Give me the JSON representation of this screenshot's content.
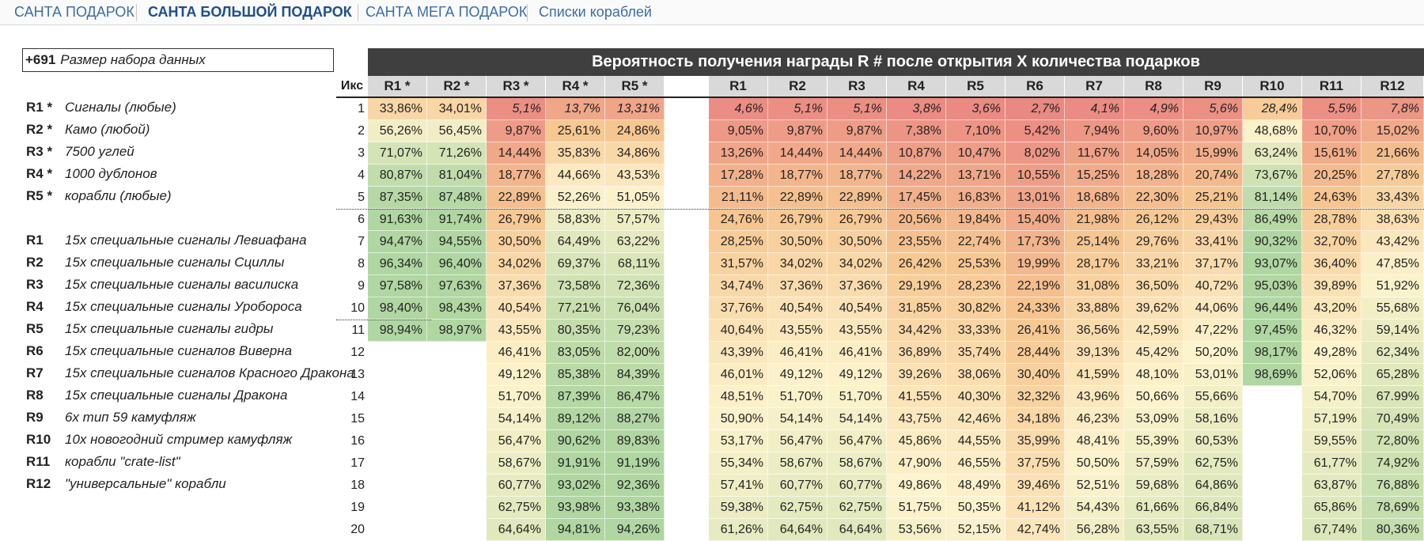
{
  "tabs": [
    {
      "label": "САНТА ПОДАРОК",
      "active": false
    },
    {
      "label": "САНТА БОЛЬШОЙ ПОДАРОК",
      "active": true
    },
    {
      "label": "САНТА МЕГА ПОДАРОК",
      "active": false
    },
    {
      "label": "Списки кораблей",
      "active": false
    }
  ],
  "dataset": {
    "count": "+691",
    "label": "Размер набора данных"
  },
  "legend": [
    {
      "code": "R1 *",
      "desc": "Сигналы (любые)"
    },
    {
      "code": "R2 *",
      "desc": "Камо (любой)"
    },
    {
      "code": "R3 *",
      "desc": "7500 углей"
    },
    {
      "code": "R4 *",
      "desc": "1000 дублонов"
    },
    {
      "code": "R5 *",
      "desc": "корабли (любые)"
    },
    {
      "code": "",
      "desc": ""
    },
    {
      "code": "R1",
      "desc": "15x специальные сигналы Левиафана"
    },
    {
      "code": "R2",
      "desc": "15x специальные сигналы Сциллы"
    },
    {
      "code": "R3",
      "desc": "15x специальные сигналы василиска"
    },
    {
      "code": "R4",
      "desc": "15x специальные сигналы Уробороса"
    },
    {
      "code": "R5",
      "desc": "15x специальные сигналы гидры"
    },
    {
      "code": "R6",
      "desc": "15x специальные сигналов Виверна"
    },
    {
      "code": "R7",
      "desc": "15x специальные сигналов Красного Дракона"
    },
    {
      "code": "R8",
      "desc": "15x специальные сигналы Дракона"
    },
    {
      "code": "R9",
      "desc": "6x тип 59 камуфляж"
    },
    {
      "code": "R10",
      "desc": "10x новогодний стример камуфляж"
    },
    {
      "code": "R11",
      "desc": "корабли \"crate-list\""
    },
    {
      "code": "R12",
      "desc": "\"универсальные\" корабли"
    }
  ],
  "table": {
    "title": "Вероятность получения награды R # после открытия X количества подарков",
    "iks_header": "Икс",
    "headers_a": [
      "R1 *",
      "R2 *",
      "R3 *",
      "R4 *",
      "R5 *"
    ],
    "headers_b": [
      "R1",
      "R2",
      "R3",
      "R4",
      "R5",
      "R6",
      "R7",
      "R8",
      "R9",
      "R10",
      "R11",
      "R12"
    ],
    "rows": [
      {
        "x": "1",
        "a": [
          "33,86%",
          "34,01%",
          "5,1%",
          "13,7%",
          "13,31%"
        ],
        "b": [
          "4,6%",
          "5,1%",
          "5,1%",
          "3,8%",
          "3,6%",
          "2,7%",
          "4,1%",
          "4,9%",
          "5,6%",
          "28,4%",
          "5,5%",
          "7,8%"
        ]
      },
      {
        "x": "2",
        "a": [
          "56,26%",
          "56,45%",
          "9,87%",
          "25,61%",
          "24,86%"
        ],
        "b": [
          "9,05%",
          "9,87%",
          "9,87%",
          "7,38%",
          "7,10%",
          "5,42%",
          "7,94%",
          "9,60%",
          "10,97%",
          "48,68%",
          "10,70%",
          "15,02%"
        ]
      },
      {
        "x": "3",
        "a": [
          "71,07%",
          "71,26%",
          "14,44%",
          "35,83%",
          "34,86%"
        ],
        "b": [
          "13,26%",
          "14,44%",
          "14,44%",
          "10,87%",
          "10,47%",
          "8,02%",
          "11,67%",
          "14,05%",
          "15,99%",
          "63,24%",
          "15,61%",
          "21,66%"
        ]
      },
      {
        "x": "4",
        "a": [
          "80,87%",
          "81,04%",
          "18,77%",
          "44,66%",
          "43,53%"
        ],
        "b": [
          "17,28%",
          "18,77%",
          "18,77%",
          "14,22%",
          "13,71%",
          "10,55%",
          "15,25%",
          "18,28%",
          "20,74%",
          "73,67%",
          "20,25%",
          "27,78%"
        ]
      },
      {
        "x": "5",
        "a": [
          "87,35%",
          "87,48%",
          "22,89%",
          "52,26%",
          "51,05%"
        ],
        "b": [
          "21,11%",
          "22,89%",
          "22,89%",
          "17,45%",
          "16,83%",
          "13,01%",
          "18,68%",
          "22,30%",
          "25,21%",
          "81,14%",
          "24,63%",
          "33,43%"
        ]
      },
      {
        "x": "6",
        "a": [
          "91,63%",
          "91,74%",
          "26,79%",
          "58,83%",
          "57,57%"
        ],
        "b": [
          "24,76%",
          "26,79%",
          "26,79%",
          "20,56%",
          "19,84%",
          "15,40%",
          "21,98%",
          "26,12%",
          "29,43%",
          "86,49%",
          "28,78%",
          "38,63%"
        ]
      },
      {
        "x": "7",
        "a": [
          "94,47%",
          "94,55%",
          "30,50%",
          "64,49%",
          "63,22%"
        ],
        "b": [
          "28,25%",
          "30,50%",
          "30,50%",
          "23,55%",
          "22,74%",
          "17,73%",
          "25,14%",
          "29,76%",
          "33,41%",
          "90,32%",
          "32,70%",
          "43,42%"
        ]
      },
      {
        "x": "8",
        "a": [
          "96,34%",
          "96,40%",
          "34,02%",
          "69,37%",
          "68,11%"
        ],
        "b": [
          "31,57%",
          "34,02%",
          "34,02%",
          "26,42%",
          "25,53%",
          "19,99%",
          "28,17%",
          "33,21%",
          "37,17%",
          "93,07%",
          "36,40%",
          "47,85%"
        ]
      },
      {
        "x": "9",
        "a": [
          "97,58%",
          "97,63%",
          "37,36%",
          "73,58%",
          "72,36%"
        ],
        "b": [
          "34,74%",
          "37,36%",
          "37,36%",
          "29,19%",
          "28,23%",
          "22,19%",
          "31,08%",
          "36,50%",
          "40,72%",
          "95,03%",
          "39,89%",
          "51,92%"
        ]
      },
      {
        "x": "10",
        "a": [
          "98,40%",
          "98,43%",
          "40,54%",
          "77,21%",
          "76,04%"
        ],
        "b": [
          "37,76%",
          "40,54%",
          "40,54%",
          "31,85%",
          "30,82%",
          "24,33%",
          "33,88%",
          "39,62%",
          "44,06%",
          "96,44%",
          "43,20%",
          "55,68%"
        ]
      },
      {
        "x": "11",
        "a": [
          "98,94%",
          "98,97%",
          "43,55%",
          "80,35%",
          "79,23%"
        ],
        "b": [
          "40,64%",
          "43,55%",
          "43,55%",
          "34,42%",
          "33,33%",
          "26,41%",
          "36,56%",
          "42,59%",
          "47,22%",
          "97,45%",
          "46,32%",
          "59,14%"
        ]
      },
      {
        "x": "12",
        "a": [
          "",
          "",
          "46,41%",
          "83,05%",
          "82,00%"
        ],
        "b": [
          "43,39%",
          "46,41%",
          "46,41%",
          "36,89%",
          "35,74%",
          "28,44%",
          "39,13%",
          "45,42%",
          "50,20%",
          "98,17%",
          "49,28%",
          "62,34%"
        ]
      },
      {
        "x": "13",
        "a": [
          "",
          "",
          "49,12%",
          "85,38%",
          "84,39%"
        ],
        "b": [
          "46,01%",
          "49,12%",
          "49,12%",
          "39,26%",
          "38,06%",
          "30,40%",
          "41,59%",
          "48,10%",
          "53,01%",
          "98,69%",
          "52,06%",
          "65,28%"
        ]
      },
      {
        "x": "14",
        "a": [
          "",
          "",
          "51,70%",
          "87,39%",
          "86,47%"
        ],
        "b": [
          "48,51%",
          "51,70%",
          "51,70%",
          "41,55%",
          "40,30%",
          "32,32%",
          "43,96%",
          "50,66%",
          "55,66%",
          "",
          "54,70%",
          "67.99%"
        ]
      },
      {
        "x": "15",
        "a": [
          "",
          "",
          "54,14%",
          "89,12%",
          "88,27%"
        ],
        "b": [
          "50,90%",
          "54,14%",
          "54,14%",
          "43,75%",
          "42,46%",
          "34,18%",
          "46,23%",
          "53,09%",
          "58,16%",
          "",
          "57,19%",
          "70,49%"
        ]
      },
      {
        "x": "16",
        "a": [
          "",
          "",
          "56,47%",
          "90,62%",
          "89,83%"
        ],
        "b": [
          "53,17%",
          "56,47%",
          "56,47%",
          "45,86%",
          "44,55%",
          "35,99%",
          "48,41%",
          "55,39%",
          "60,53%",
          "",
          "59,55%",
          "72,80%"
        ]
      },
      {
        "x": "17",
        "a": [
          "",
          "",
          "58,67%",
          "91,91%",
          "91,19%"
        ],
        "b": [
          "55,34%",
          "58,67%",
          "58,67%",
          "47,90%",
          "46,55%",
          "37,75%",
          "50,50%",
          "57,59%",
          "62,75%",
          "",
          "61,77%",
          "74,92%"
        ]
      },
      {
        "x": "18",
        "a": [
          "",
          "",
          "60,77%",
          "93,02%",
          "92,36%"
        ],
        "b": [
          "57,41%",
          "60,77%",
          "60,77%",
          "49,86%",
          "48,49%",
          "39,46%",
          "52,51%",
          "59,68%",
          "64,86%",
          "",
          "63,87%",
          "76,88%"
        ]
      },
      {
        "x": "19",
        "a": [
          "",
          "",
          "62,75%",
          "93,98%",
          "93,38%"
        ],
        "b": [
          "59,38%",
          "62,75%",
          "62,75%",
          "51,75%",
          "50,35%",
          "41,12%",
          "54,43%",
          "61,66%",
          "66,84%",
          "",
          "65,86%",
          "78,69%"
        ]
      },
      {
        "x": "20",
        "a": [
          "",
          "",
          "64,64%",
          "94,81%",
          "94,26%"
        ],
        "b": [
          "61,26%",
          "64,64%",
          "64,64%",
          "53,56%",
          "52,15%",
          "42,74%",
          "56,28%",
          "63,55%",
          "68,71%",
          "",
          "67,74%",
          "80,36%"
        ]
      }
    ]
  }
}
